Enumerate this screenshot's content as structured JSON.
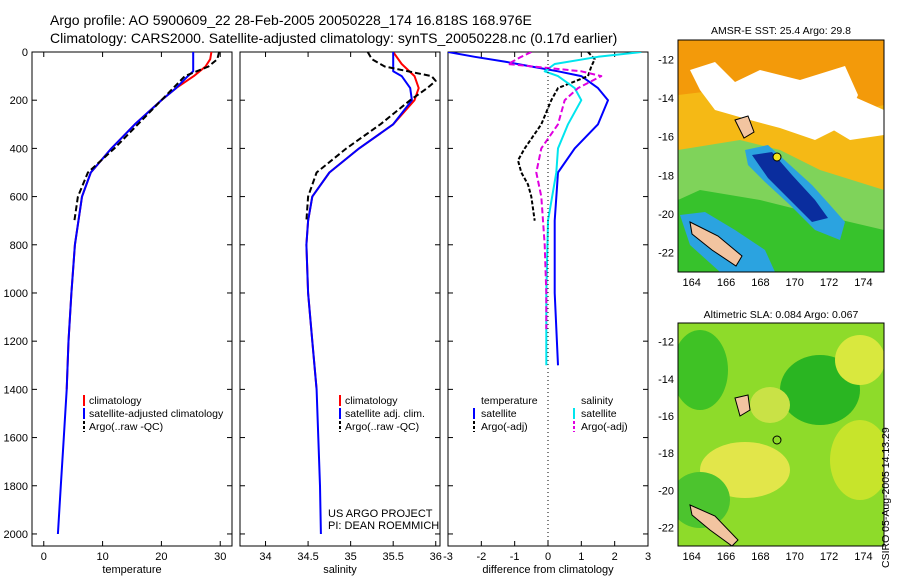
{
  "header": {
    "title_line1": "Argo profile: AO 5900609_22 28-Feb-2005 20050228_174 16.818S 168.976E",
    "title_line2": "Climatology: CARS2000. Satellite-adjusted climatology: synTS_20050228.nc (0.17d earlier)"
  },
  "colors": {
    "climatology": "#ff0000",
    "satellite": "#0000ff",
    "argo": "#000000",
    "sal_satellite": "#00e5ee",
    "sal_argo": "#e000e0"
  },
  "chart_data": [
    {
      "type": "line",
      "name": "temperature-profile",
      "xlabel": "temperature",
      "ylabel": "depth",
      "xlim": [
        -2,
        32
      ],
      "ylim": [
        0,
        2050
      ],
      "xticks": [
        0,
        10,
        20,
        30
      ],
      "yticks": [
        0,
        200,
        400,
        600,
        800,
        1000,
        1200,
        1400,
        1600,
        1800,
        2000
      ],
      "legend": [
        "climatology",
        "satellite-adjusted climatology",
        "Argo(..raw -QC)"
      ],
      "series": [
        {
          "name": "climatology",
          "depth": [
            0,
            30,
            60,
            100,
            150,
            200,
            300,
            400,
            500,
            600,
            800,
            1000,
            1200,
            1400
          ],
          "values": [
            28.5,
            28.3,
            27.5,
            25.5,
            22.5,
            20,
            15.5,
            11.5,
            8,
            6.5,
            5.3,
            4.7,
            4.2,
            3.9
          ]
        },
        {
          "name": "satellite-adjusted climatology",
          "depth": [
            0,
            80,
            100,
            150,
            200,
            300,
            400,
            500,
            600,
            800,
            1000,
            1200,
            1400,
            1600,
            1800,
            2000
          ],
          "values": [
            25.4,
            25.4,
            24.5,
            22.5,
            20,
            15.5,
            11.5,
            8,
            6.5,
            5.3,
            4.7,
            4.2,
            3.9,
            3.4,
            2.9,
            2.4
          ]
        },
        {
          "name": "Argo(..raw -QC)",
          "depth": [
            0,
            30,
            60,
            100,
            150,
            200,
            300,
            400,
            500,
            600,
            700
          ],
          "values": [
            29.8,
            29.5,
            28,
            24,
            22,
            20,
            16,
            12,
            7.5,
            5.8,
            5.2
          ]
        }
      ]
    },
    {
      "type": "line",
      "name": "salinity-profile",
      "xlabel": "salinity",
      "ylabel": "depth",
      "xlim": [
        33.7,
        36.05
      ],
      "ylim": [
        0,
        2050
      ],
      "xticks": [
        34,
        34.5,
        35,
        35.5,
        36
      ],
      "legend": [
        "climatology",
        "satellite adj. clim.",
        "Argo(..raw -QC)"
      ],
      "series": [
        {
          "name": "climatology",
          "depth": [
            0,
            50,
            100,
            150,
            200,
            300,
            400,
            500,
            600,
            700,
            800,
            1000,
            1200,
            1400
          ],
          "values": [
            35.5,
            35.6,
            35.75,
            35.8,
            35.75,
            35.5,
            35.1,
            34.75,
            34.55,
            34.5,
            34.48,
            34.5,
            34.55,
            34.6
          ]
        },
        {
          "name": "satellite adj. clim.",
          "depth": [
            0,
            80,
            100,
            150,
            200,
            300,
            400,
            500,
            600,
            700,
            800,
            1000,
            1200,
            1400,
            1600,
            1800,
            2000
          ],
          "values": [
            35.5,
            35.5,
            35.6,
            35.7,
            35.72,
            35.5,
            35.1,
            34.75,
            34.55,
            34.5,
            34.48,
            34.5,
            34.55,
            34.6,
            34.62,
            34.64,
            34.65
          ]
        },
        {
          "name": "Argo(..raw -QC)",
          "depth": [
            0,
            30,
            60,
            100,
            120,
            150,
            200,
            300,
            400,
            500,
            600,
            700
          ],
          "values": [
            35.2,
            35.25,
            35.4,
            35.95,
            36.0,
            35.9,
            35.7,
            35.35,
            34.95,
            34.6,
            34.5,
            34.48
          ]
        }
      ]
    },
    {
      "type": "line",
      "name": "difference-profile",
      "xlabel": "difference from climatology",
      "ylabel": "depth",
      "xlim": [
        -3,
        3
      ],
      "ylim": [
        0,
        2050
      ],
      "xticks": [
        -3,
        -2,
        -1,
        0,
        1,
        2,
        3
      ],
      "legend_temperature": {
        "heading": "temperature",
        "items": [
          "satellite",
          "Argo(-adj)"
        ]
      },
      "legend_salinity": {
        "heading": "salinity",
        "items": [
          "satellite",
          "Argo(-adj)"
        ]
      },
      "series": [
        {
          "name": "temperature satellite",
          "depth": [
            0,
            20,
            40,
            60,
            80,
            100,
            150,
            200,
            300,
            400,
            500,
            700,
            1000,
            1300
          ],
          "values": [
            -3,
            -2.2,
            -1.3,
            -0.5,
            0.3,
            1.0,
            1.5,
            1.8,
            1.5,
            0.8,
            0.3,
            0.2,
            0.2,
            0.3
          ]
        },
        {
          "name": "temperature Argo(-adj)",
          "depth": [
            0,
            30,
            60,
            100,
            150,
            200,
            300,
            400,
            450,
            500,
            550,
            600,
            700
          ],
          "values": [
            1.2,
            1.4,
            1.3,
            1.2,
            0.3,
            0.1,
            -0.2,
            -0.7,
            -0.9,
            -0.8,
            -0.6,
            -0.5,
            -0.4
          ]
        },
        {
          "name": "salinity satellite",
          "depth": [
            0,
            20,
            50,
            80,
            100,
            150,
            200,
            300,
            400,
            500,
            700,
            1000,
            1300
          ],
          "values": [
            2.8,
            1.5,
            0.2,
            -0.1,
            0.3,
            0.8,
            1.0,
            0.6,
            0.3,
            0.25,
            0.0,
            -0.05,
            -0.05
          ]
        },
        {
          "name": "salinity Argo(-adj)",
          "depth": [
            0,
            20,
            50,
            80,
            100,
            150,
            200,
            300,
            400,
            500,
            600,
            800,
            1000,
            1150
          ],
          "values": [
            -0.5,
            -0.8,
            -1.2,
            1.0,
            1.6,
            0.9,
            0.5,
            0.3,
            -0.2,
            -0.35,
            -0.2,
            -0.1,
            -0.05,
            -0.05
          ]
        }
      ]
    },
    {
      "type": "heatmap",
      "name": "sst-map",
      "title": "AMSR-E SST: 25.4  Argo: 29.8",
      "xticks": [
        164,
        166,
        168,
        170,
        172,
        174
      ],
      "yticks": [
        -12,
        -14,
        -16,
        -18,
        -20,
        -22
      ],
      "xlim": [
        163.2,
        175.2
      ],
      "ylim": [
        -23,
        -11
      ]
    },
    {
      "type": "heatmap",
      "name": "sla-map",
      "title": "Altimetric SLA: 0.084  Argo: 0.067",
      "xticks": [
        164,
        166,
        168,
        170,
        172,
        174
      ],
      "yticks": [
        -12,
        -14,
        -16,
        -18,
        -20,
        -22
      ],
      "xlim": [
        163.2,
        175.2
      ],
      "ylim": [
        -23,
        -11
      ]
    }
  ],
  "footer": {
    "credit_line1": "US ARGO PROJECT",
    "credit_line2": "PI: DEAN ROEMMICH",
    "timestamp": "CSIRO 05-Aug-2005 14:13:29"
  }
}
